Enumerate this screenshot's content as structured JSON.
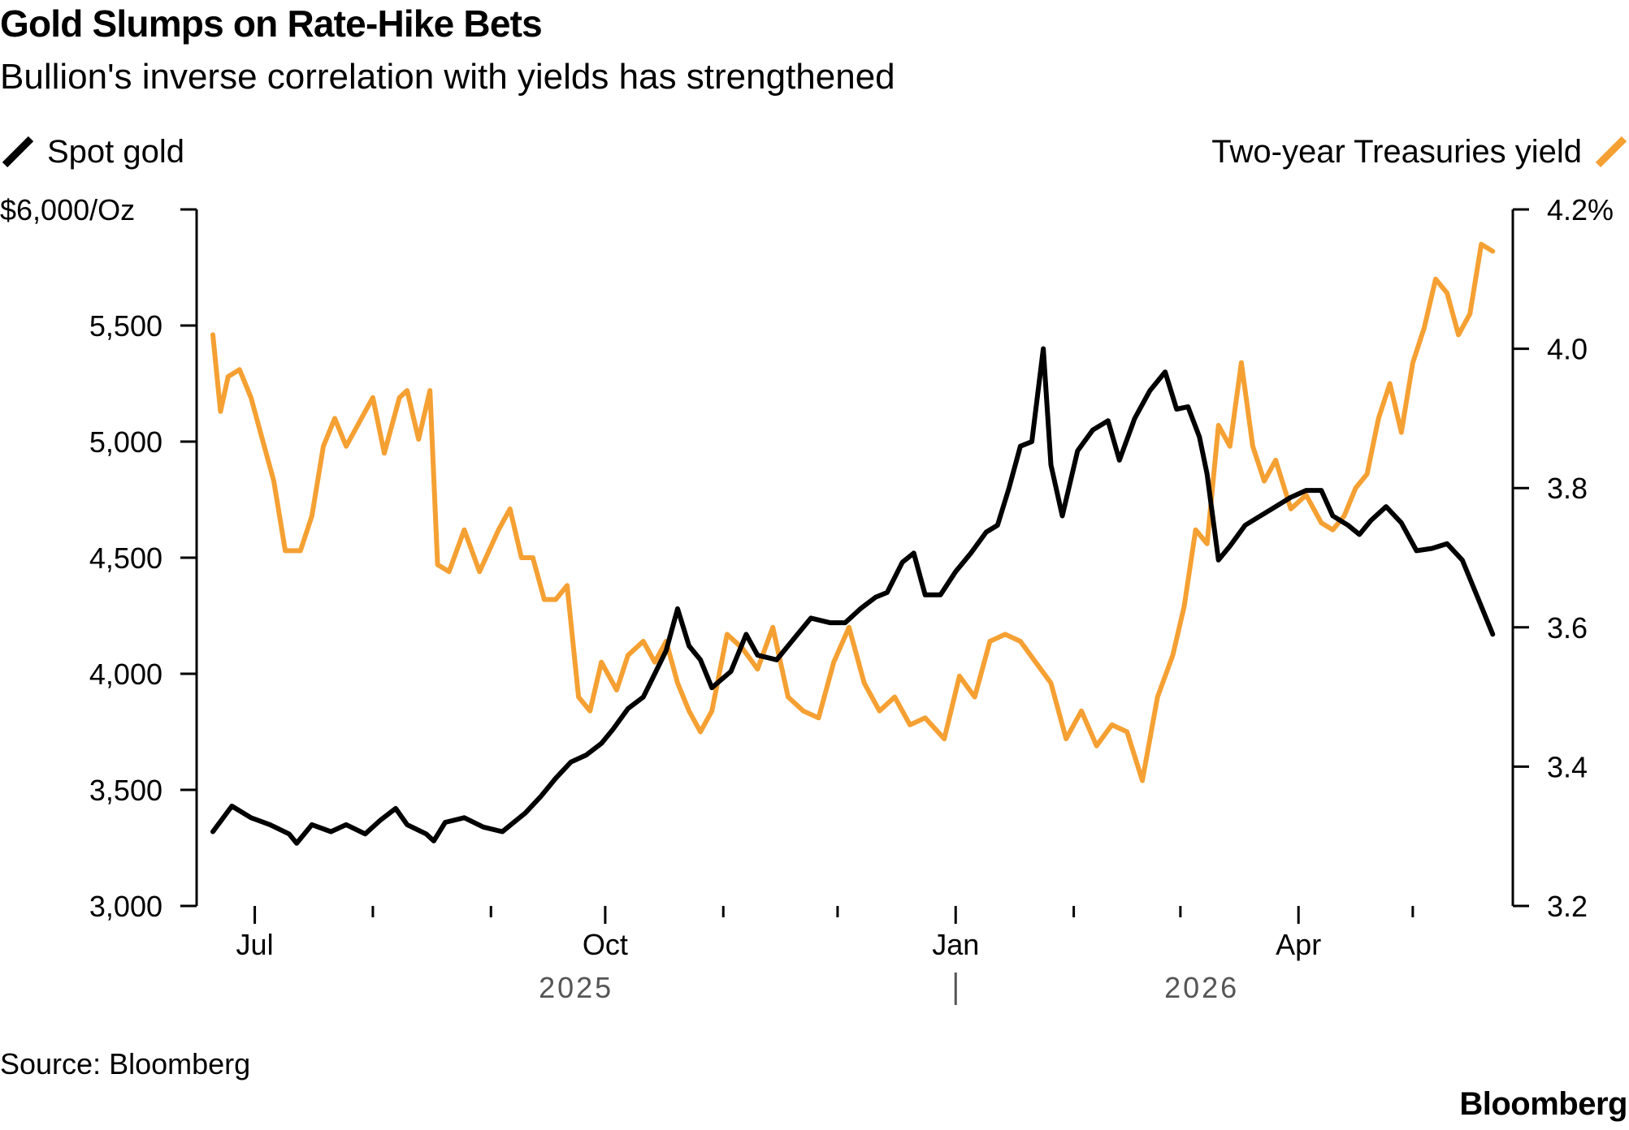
{
  "title": "Gold Slumps on Rate-Hike Bets",
  "subtitle": "Bullion's inverse correlation with yields has strengthened",
  "source": "Source: Bloomberg",
  "logo": "Bloomberg",
  "colors": {
    "gold_series": "#000000",
    "yield_series": "#f5a033",
    "axis": "#000000",
    "year_label": "#555555"
  },
  "chart_data": {
    "type": "line",
    "legend": [
      {
        "name": "Spot gold",
        "axis": "left",
        "position": "top-left"
      },
      {
        "name": "Two-year Treasuries yield",
        "axis": "right",
        "position": "top-right"
      }
    ],
    "x_axis": {
      "range": [
        "2025-06-20",
        "2026-05-23"
      ],
      "ticks": [
        "Jul",
        "Oct",
        "Jan",
        "Apr"
      ],
      "year_labels": [
        "2025",
        "2026"
      ]
    },
    "y_left": {
      "range": [
        3000,
        6000
      ],
      "ticks": [
        "3,000",
        "3,500",
        "4,000",
        "4,500",
        "5,000",
        "5,500",
        "$6,000/Oz"
      ]
    },
    "y_right": {
      "range": [
        3.2,
        4.2
      ],
      "ticks": [
        "3.2",
        "3.4",
        "3.6",
        "3.8",
        "4.0",
        "4.2%"
      ]
    },
    "grid": false,
    "series": [
      {
        "name": "Spot gold",
        "axis": "left",
        "points": [
          [
            "2025-06-20",
            3320
          ],
          [
            "2025-06-25",
            3430
          ],
          [
            "2025-06-30",
            3380
          ],
          [
            "2025-07-05",
            3350
          ],
          [
            "2025-07-10",
            3310
          ],
          [
            "2025-07-12",
            3270
          ],
          [
            "2025-07-16",
            3350
          ],
          [
            "2025-07-21",
            3320
          ],
          [
            "2025-07-25",
            3350
          ],
          [
            "2025-07-30",
            3310
          ],
          [
            "2025-08-03",
            3370
          ],
          [
            "2025-08-07",
            3420
          ],
          [
            "2025-08-10",
            3350
          ],
          [
            "2025-08-15",
            3310
          ],
          [
            "2025-08-17",
            3280
          ],
          [
            "2025-08-20",
            3360
          ],
          [
            "2025-08-25",
            3380
          ],
          [
            "2025-08-30",
            3340
          ],
          [
            "2025-09-04",
            3320
          ],
          [
            "2025-09-07",
            3360
          ],
          [
            "2025-09-10",
            3400
          ],
          [
            "2025-09-14",
            3470
          ],
          [
            "2025-09-18",
            3550
          ],
          [
            "2025-09-22",
            3620
          ],
          [
            "2025-09-26",
            3650
          ],
          [
            "2025-09-30",
            3700
          ],
          [
            "2025-10-03",
            3760
          ],
          [
            "2025-10-07",
            3850
          ],
          [
            "2025-10-11",
            3900
          ],
          [
            "2025-10-14",
            4000
          ],
          [
            "2025-10-17",
            4100
          ],
          [
            "2025-10-20",
            4280
          ],
          [
            "2025-10-23",
            4120
          ],
          [
            "2025-10-26",
            4060
          ],
          [
            "2025-10-29",
            3940
          ],
          [
            "2025-11-03",
            4010
          ],
          [
            "2025-11-07",
            4170
          ],
          [
            "2025-11-10",
            4080
          ],
          [
            "2025-11-15",
            4060
          ],
          [
            "2025-11-20",
            4160
          ],
          [
            "2025-11-24",
            4240
          ],
          [
            "2025-11-29",
            4220
          ],
          [
            "2025-12-03",
            4220
          ],
          [
            "2025-12-07",
            4280
          ],
          [
            "2025-12-11",
            4330
          ],
          [
            "2025-12-14",
            4350
          ],
          [
            "2025-12-18",
            4480
          ],
          [
            "2025-12-21",
            4520
          ],
          [
            "2025-12-24",
            4340
          ],
          [
            "2025-12-28",
            4340
          ],
          [
            "2026-01-01",
            4440
          ],
          [
            "2026-01-05",
            4520
          ],
          [
            "2026-01-09",
            4610
          ],
          [
            "2026-01-12",
            4640
          ],
          [
            "2026-01-15",
            4800
          ],
          [
            "2026-01-18",
            4980
          ],
          [
            "2026-01-21",
            5000
          ],
          [
            "2026-01-24",
            5400
          ],
          [
            "2026-01-26",
            4900
          ],
          [
            "2026-01-29",
            4680
          ],
          [
            "2026-02-02",
            4960
          ],
          [
            "2026-02-06",
            5050
          ],
          [
            "2026-02-10",
            5090
          ],
          [
            "2026-02-13",
            4920
          ],
          [
            "2026-02-17",
            5100
          ],
          [
            "2026-02-21",
            5220
          ],
          [
            "2026-02-25",
            5300
          ],
          [
            "2026-02-28",
            5140
          ],
          [
            "2026-03-03",
            5150
          ],
          [
            "2026-03-06",
            5020
          ],
          [
            "2026-03-08",
            4860
          ],
          [
            "2026-03-11",
            4490
          ],
          [
            "2026-03-14",
            4550
          ],
          [
            "2026-03-18",
            4640
          ],
          [
            "2026-03-22",
            4680
          ],
          [
            "2026-03-26",
            4720
          ],
          [
            "2026-03-30",
            4760
          ],
          [
            "2026-04-03",
            4790
          ],
          [
            "2026-04-07",
            4790
          ],
          [
            "2026-04-10",
            4680
          ],
          [
            "2026-04-14",
            4640
          ],
          [
            "2026-04-17",
            4600
          ],
          [
            "2026-04-20",
            4660
          ],
          [
            "2026-04-24",
            4720
          ],
          [
            "2026-04-28",
            4650
          ],
          [
            "2026-05-02",
            4530
          ],
          [
            "2026-05-06",
            4540
          ],
          [
            "2026-05-10",
            4560
          ],
          [
            "2026-05-14",
            4490
          ],
          [
            "2026-05-18",
            4330
          ],
          [
            "2026-05-22",
            4170
          ]
        ]
      },
      {
        "name": "Two-year Treasuries yield",
        "axis": "right",
        "points": [
          [
            "2025-06-20",
            4.02
          ],
          [
            "2025-06-22",
            3.91
          ],
          [
            "2025-06-24",
            3.96
          ],
          [
            "2025-06-27",
            3.97
          ],
          [
            "2025-06-30",
            3.93
          ],
          [
            "2025-07-03",
            3.87
          ],
          [
            "2025-07-06",
            3.81
          ],
          [
            "2025-07-09",
            3.71
          ],
          [
            "2025-07-13",
            3.71
          ],
          [
            "2025-07-16",
            3.76
          ],
          [
            "2025-07-19",
            3.86
          ],
          [
            "2025-07-22",
            3.9
          ],
          [
            "2025-07-25",
            3.86
          ],
          [
            "2025-07-29",
            3.9
          ],
          [
            "2025-08-01",
            3.93
          ],
          [
            "2025-08-04",
            3.85
          ],
          [
            "2025-08-08",
            3.93
          ],
          [
            "2025-08-10",
            3.94
          ],
          [
            "2025-08-13",
            3.87
          ],
          [
            "2025-08-16",
            3.94
          ],
          [
            "2025-08-18",
            3.69
          ],
          [
            "2025-08-21",
            3.68
          ],
          [
            "2025-08-25",
            3.74
          ],
          [
            "2025-08-29",
            3.68
          ],
          [
            "2025-09-03",
            3.74
          ],
          [
            "2025-09-06",
            3.77
          ],
          [
            "2025-09-09",
            3.7
          ],
          [
            "2025-09-12",
            3.7
          ],
          [
            "2025-09-15",
            3.64
          ],
          [
            "2025-09-18",
            3.64
          ],
          [
            "2025-09-21",
            3.66
          ],
          [
            "2025-09-24",
            3.5
          ],
          [
            "2025-09-27",
            3.48
          ],
          [
            "2025-09-30",
            3.55
          ],
          [
            "2025-10-04",
            3.51
          ],
          [
            "2025-10-07",
            3.56
          ],
          [
            "2025-10-11",
            3.58
          ],
          [
            "2025-10-14",
            3.55
          ],
          [
            "2025-10-17",
            3.58
          ],
          [
            "2025-10-20",
            3.52
          ],
          [
            "2025-10-23",
            3.48
          ],
          [
            "2025-10-26",
            3.45
          ],
          [
            "2025-10-29",
            3.48
          ],
          [
            "2025-11-02",
            3.59
          ],
          [
            "2025-11-06",
            3.57
          ],
          [
            "2025-11-10",
            3.54
          ],
          [
            "2025-11-14",
            3.6
          ],
          [
            "2025-11-18",
            3.5
          ],
          [
            "2025-11-22",
            3.48
          ],
          [
            "2025-11-26",
            3.47
          ],
          [
            "2025-11-30",
            3.55
          ],
          [
            "2025-12-04",
            3.6
          ],
          [
            "2025-12-08",
            3.52
          ],
          [
            "2025-12-12",
            3.48
          ],
          [
            "2025-12-16",
            3.5
          ],
          [
            "2025-12-20",
            3.46
          ],
          [
            "2025-12-24",
            3.47
          ],
          [
            "2025-12-29",
            3.44
          ],
          [
            "2026-01-02",
            3.53
          ],
          [
            "2026-01-06",
            3.5
          ],
          [
            "2026-01-10",
            3.58
          ],
          [
            "2026-01-14",
            3.59
          ],
          [
            "2026-01-18",
            3.58
          ],
          [
            "2026-01-22",
            3.55
          ],
          [
            "2026-01-26",
            3.52
          ],
          [
            "2026-01-30",
            3.44
          ],
          [
            "2026-02-03",
            3.48
          ],
          [
            "2026-02-07",
            3.43
          ],
          [
            "2026-02-11",
            3.46
          ],
          [
            "2026-02-15",
            3.45
          ],
          [
            "2026-02-19",
            3.38
          ],
          [
            "2026-02-23",
            3.5
          ],
          [
            "2026-02-27",
            3.56
          ],
          [
            "2026-03-02",
            3.63
          ],
          [
            "2026-03-05",
            3.74
          ],
          [
            "2026-03-08",
            3.72
          ],
          [
            "2026-03-11",
            3.89
          ],
          [
            "2026-03-14",
            3.86
          ],
          [
            "2026-03-17",
            3.98
          ],
          [
            "2026-03-20",
            3.86
          ],
          [
            "2026-03-23",
            3.81
          ],
          [
            "2026-03-26",
            3.84
          ],
          [
            "2026-03-30",
            3.77
          ],
          [
            "2026-04-03",
            3.79
          ],
          [
            "2026-04-07",
            3.75
          ],
          [
            "2026-04-10",
            3.74
          ],
          [
            "2026-04-13",
            3.76
          ],
          [
            "2026-04-16",
            3.8
          ],
          [
            "2026-04-19",
            3.82
          ],
          [
            "2026-04-22",
            3.9
          ],
          [
            "2026-04-25",
            3.95
          ],
          [
            "2026-04-28",
            3.88
          ],
          [
            "2026-05-01",
            3.98
          ],
          [
            "2026-05-04",
            4.03
          ],
          [
            "2026-05-07",
            4.1
          ],
          [
            "2026-05-10",
            4.08
          ],
          [
            "2026-05-13",
            4.02
          ],
          [
            "2026-05-16",
            4.05
          ],
          [
            "2026-05-19",
            4.15
          ],
          [
            "2026-05-22",
            4.14
          ]
        ]
      }
    ]
  }
}
